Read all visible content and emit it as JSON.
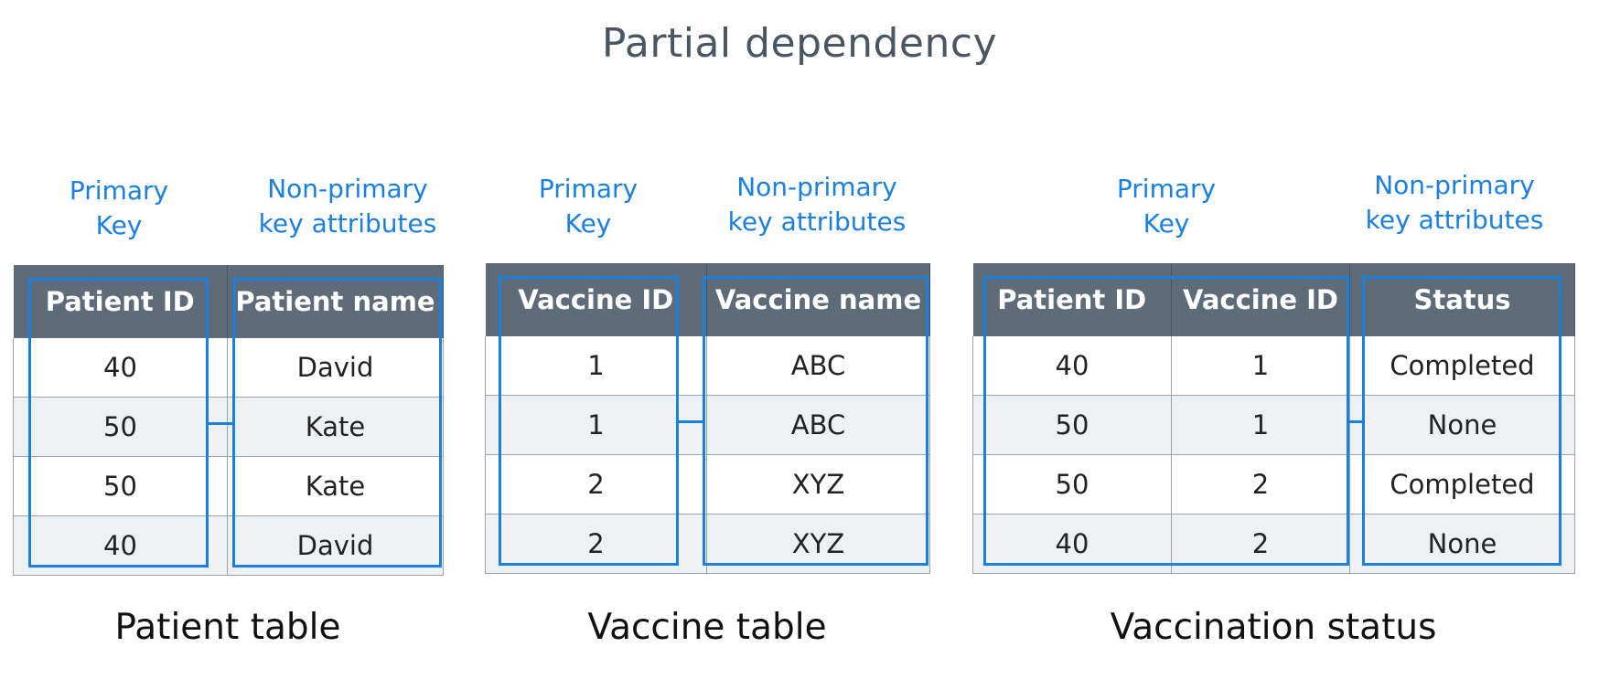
{
  "title": "Partial dependency",
  "labels": {
    "primary_key": [
      "Primary",
      "Key"
    ],
    "non_primary": [
      "Non-primary",
      "key attributes"
    ]
  },
  "tables": [
    {
      "caption": "Patient table",
      "headers": [
        "Patient ID",
        "Patient name"
      ],
      "rows": [
        [
          "40",
          "David"
        ],
        [
          "50",
          "Kate"
        ],
        [
          "50",
          "Kate"
        ],
        [
          "40",
          "David"
        ]
      ]
    },
    {
      "caption": "Vaccine table",
      "headers": [
        "Vaccine ID",
        "Vaccine name"
      ],
      "rows": [
        [
          "1",
          "ABC"
        ],
        [
          "1",
          "ABC"
        ],
        [
          "2",
          "XYZ"
        ],
        [
          "2",
          "XYZ"
        ]
      ]
    },
    {
      "caption": "Vaccination status",
      "headers": [
        "Patient ID",
        "Vaccine ID",
        "Status"
      ],
      "rows": [
        [
          "40",
          "1",
          "Completed"
        ],
        [
          "50",
          "1",
          "None"
        ],
        [
          "50",
          "2",
          "Completed"
        ],
        [
          "40",
          "2",
          "None"
        ]
      ]
    }
  ],
  "colors": {
    "accent": "#1b7fe0",
    "header_bg": "#5e6b78",
    "title": "#4a5663"
  }
}
